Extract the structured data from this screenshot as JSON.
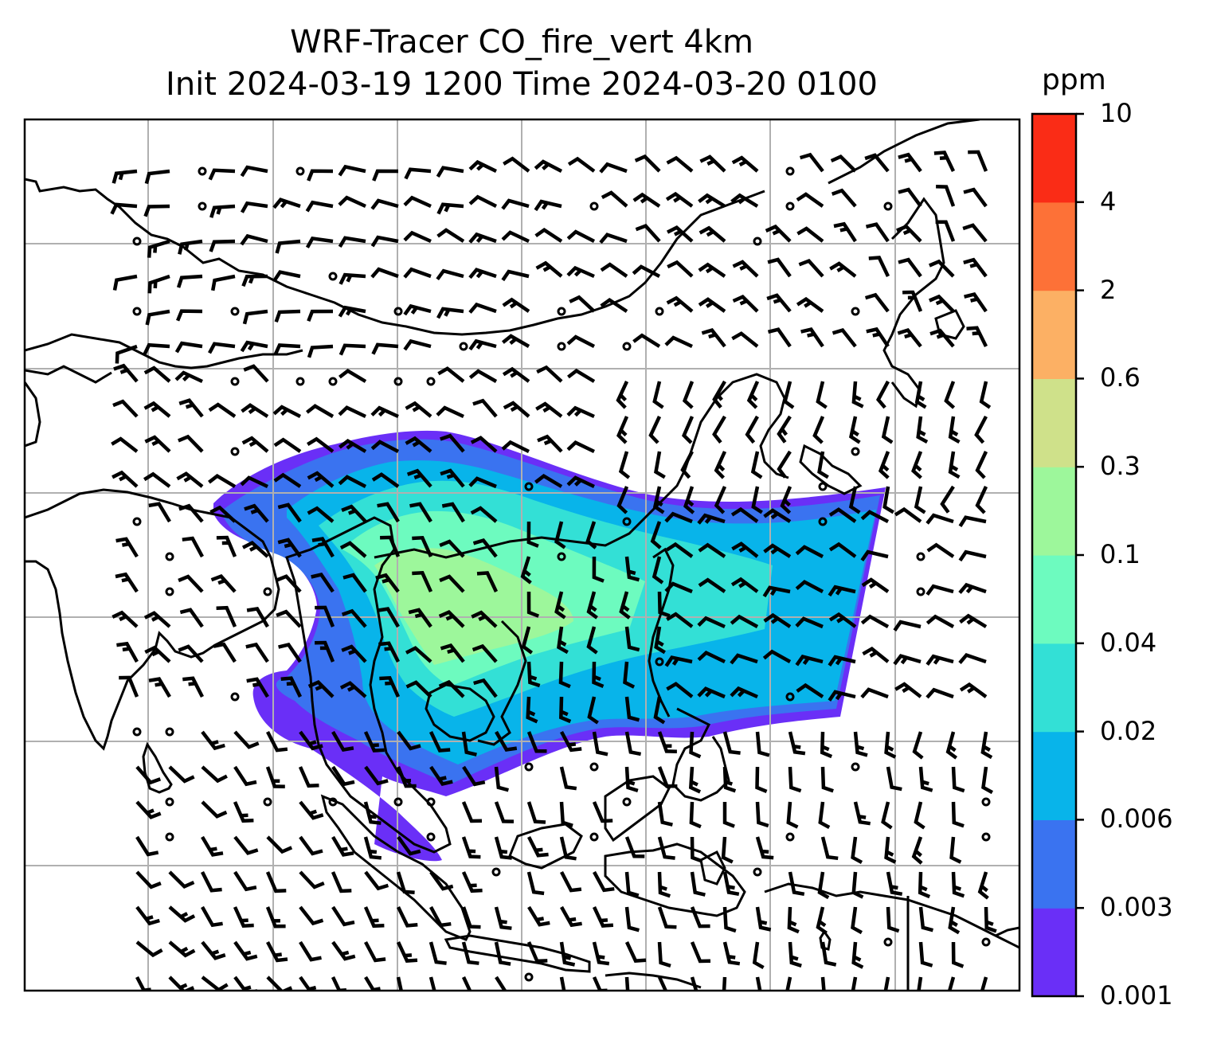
{
  "title_line1": "WRF-Tracer CO_fire_vert 4km",
  "title_line2": "Init 2024-03-19 1200 Time 2024-03-20 0100",
  "colorbar": {
    "unit": "ppm",
    "levels": [
      "0.001",
      "0.003",
      "0.006",
      "0.02",
      "0.04",
      "0.1",
      "0.3",
      "0.6",
      "2",
      "4",
      "10"
    ],
    "colors": [
      "#6a2ff7",
      "#3a73f0",
      "#08b4ea",
      "#33e0d6",
      "#6dfbbf",
      "#9df79b",
      "#cfe18a",
      "#fcb064",
      "#fd7137",
      "#fa2c16"
    ]
  },
  "map": {
    "gridline_color": "#b0b0b0",
    "coastline_color": "#000000",
    "symbols": "wind-barbs"
  }
}
